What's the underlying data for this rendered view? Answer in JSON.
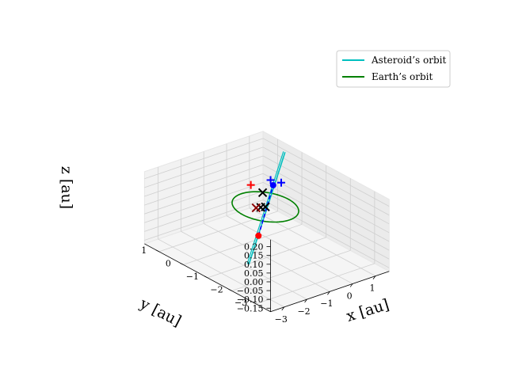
{
  "chart_data": {
    "type": "line",
    "projection": "3d",
    "xlabel": "x [au]",
    "ylabel": "y [au]",
    "zlabel": "z [au]",
    "xlim": [
      -3.6,
      1.6
    ],
    "ylim": [
      -3.6,
      1.6
    ],
    "zlim": [
      -0.17,
      0.24
    ],
    "x_ticks": [
      "−3",
      "−2",
      "−1",
      "0",
      "1"
    ],
    "y_ticks": [
      "−3",
      "−2",
      "−1",
      "0",
      "1"
    ],
    "z_ticks": [
      "−0.15",
      "−0.10",
      "−0.05",
      "0.00",
      "0.05",
      "0.10",
      "0.15",
      "0.20"
    ],
    "grid": true,
    "legend_position": "upper right",
    "colors": {
      "asteroid": "#00bfbf",
      "earth": "#008000",
      "red": "#ff0000",
      "blue": "#0000ff",
      "black": "#000000"
    },
    "series": [
      {
        "name": "Asteroid’s orbit",
        "color": "#00bfbf",
        "points": [
          [
            1.5,
            0.6,
            0.2
          ],
          [
            -2.0,
            -1.2,
            -0.15
          ]
        ]
      },
      {
        "name": "Earth’s orbit",
        "color": "#008000",
        "center": [
          0,
          0,
          0
        ],
        "radius": 1.0
      }
    ],
    "markers": [
      {
        "kind": "dot",
        "color": "#ff0000",
        "xyz": [
          -1.1,
          -0.75,
          -0.06
        ]
      },
      {
        "kind": "dot",
        "color": "#0000ff",
        "xyz": [
          0.5,
          0.15,
          0.09
        ]
      },
      {
        "kind": "plus",
        "color": "#ff0000",
        "xyz": [
          0.0,
          0.6,
          0.08
        ]
      },
      {
        "kind": "plus",
        "color": "#0000ff",
        "xyz": [
          0.6,
          0.35,
          0.1
        ]
      },
      {
        "kind": "plus",
        "color": "#0000ff",
        "xyz": [
          0.8,
          0.1,
          0.095
        ]
      },
      {
        "kind": "cross",
        "color": "#000000",
        "xyz": [
          0.2,
          0.3,
          0.05
        ]
      },
      {
        "kind": "cross",
        "color": "#000000",
        "xyz": [
          0.0,
          0.0,
          0.0
        ]
      },
      {
        "kind": "cross",
        "color": "#000000",
        "xyz": [
          -0.15,
          0.05,
          0.0
        ]
      },
      {
        "kind": "cross",
        "color": "#8b0000",
        "xyz": [
          -0.3,
          0.1,
          0.0
        ]
      }
    ],
    "dashed_segment": {
      "color": "#0000ff",
      "from": [
        -1.1,
        -0.75,
        -0.06
      ],
      "to": [
        0.5,
        0.15,
        0.09
      ]
    }
  }
}
